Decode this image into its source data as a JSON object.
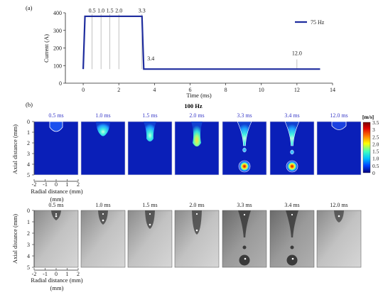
{
  "panel_a_label": "(a)",
  "panel_b_label": "(b)",
  "chart_data": [
    {
      "type": "line",
      "xlabel": "Time (ms)",
      "ylabel": "Current (A)",
      "xlim": [
        -1,
        14
      ],
      "ylim": [
        0,
        400
      ],
      "x_ticks": [
        0,
        2,
        4,
        6,
        8,
        10,
        12,
        14
      ],
      "y_ticks": [
        0,
        100,
        200,
        300,
        400
      ],
      "grid": false,
      "legend_position": "top-right",
      "series": [
        {
          "name": "75 Hz",
          "color": "#1f2d9e",
          "x": [
            0,
            0.1,
            3.3,
            3.4,
            13.3
          ],
          "y": [
            80,
            380,
            380,
            80,
            80
          ]
        }
      ],
      "markers": [
        {
          "x": 0.5,
          "label": "0.5"
        },
        {
          "x": 1.0,
          "label": "1.0"
        },
        {
          "x": 1.5,
          "label": "1.5"
        },
        {
          "x": 2.0,
          "label": "2.0"
        },
        {
          "x": 3.3,
          "label": "3.3"
        },
        {
          "x": 3.4,
          "label": "3.4"
        },
        {
          "x": 12.0,
          "label": "12.0"
        }
      ]
    },
    {
      "type": "heatmap",
      "title": "100 Hz",
      "frame_times": [
        "0.5 ms",
        "1.0 ms",
        "1.5 ms",
        "2.0 ms",
        "3.3 ms",
        "3.4 ms",
        "12.0 ms"
      ],
      "ylabel": "Axial distance (mm)",
      "xlabel": "Radial distance (mm)",
      "x_ticks": [
        -2,
        -1,
        0,
        1,
        2
      ],
      "y_ticks": [
        0,
        1,
        2,
        3,
        4,
        5
      ],
      "colorbar_unit": "[m/s]",
      "colorbar_ticks": [
        "3.5",
        "3",
        "2.5",
        "2.0",
        "1.5",
        "1.0",
        "0.5",
        "0"
      ],
      "colorbar_range": [
        0,
        3.5
      ]
    },
    {
      "type": "heatmap",
      "frame_times": [
        "0.5 ms",
        "1.0 ms",
        "1.5 ms",
        "2.0 ms",
        "3.3 ms",
        "3.4 ms",
        "12.0 ms"
      ],
      "ylabel": "Axial distance (mm)",
      "xlabel": "Radial distance (mm)",
      "x_ticks": [
        -2,
        -1,
        0,
        1,
        2
      ],
      "y_ticks": [
        0,
        1,
        2,
        3,
        4,
        5
      ]
    }
  ]
}
